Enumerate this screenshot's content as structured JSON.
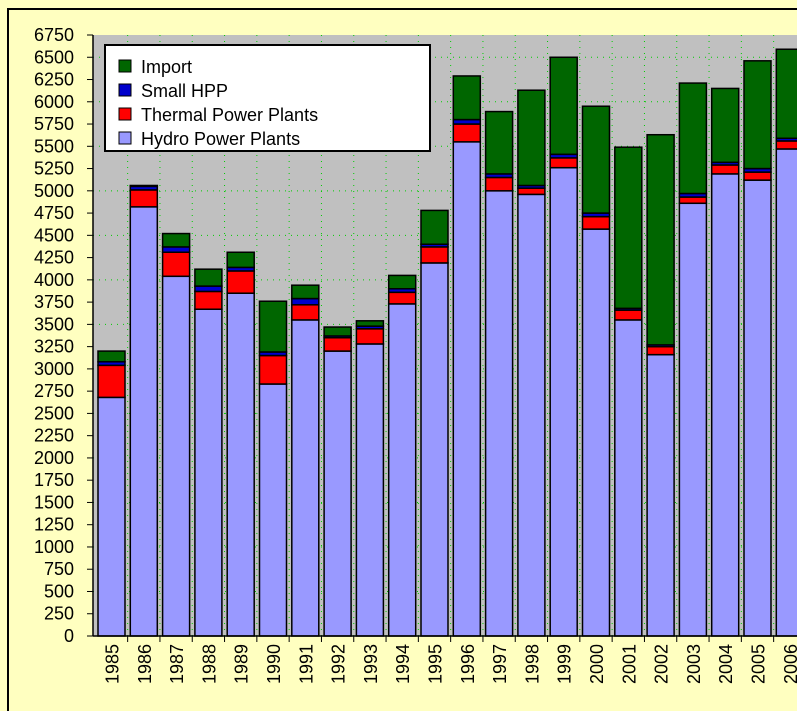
{
  "chart_data": {
    "type": "stacked_bar",
    "categories": [
      "1985",
      "1986",
      "1987",
      "1988",
      "1989",
      "1990",
      "1991",
      "1992",
      "1993",
      "1994",
      "1995",
      "1996",
      "1997",
      "1998",
      "1999",
      "2000",
      "2001",
      "2002",
      "2003",
      "2004",
      "2005",
      "2006"
    ],
    "series": [
      {
        "name": "Hydro Power Plants",
        "color": "#9999ff",
        "values": [
          2680,
          4820,
          4040,
          3670,
          3850,
          2830,
          3550,
          3200,
          3280,
          3730,
          4190,
          5550,
          5000,
          4960,
          5260,
          4570,
          3550,
          3160,
          4860,
          5190,
          5120,
          5470
        ]
      },
      {
        "name": "Thermal Power Plants",
        "color": "#ff0000",
        "values": [
          360,
          190,
          270,
          200,
          250,
          320,
          170,
          150,
          170,
          130,
          180,
          200,
          150,
          70,
          110,
          140,
          110,
          90,
          70,
          100,
          90,
          90
        ]
      },
      {
        "name": "Small HPP",
        "color": "#0000cc",
        "values": [
          40,
          40,
          60,
          60,
          40,
          40,
          70,
          20,
          30,
          40,
          30,
          50,
          40,
          30,
          40,
          40,
          20,
          20,
          40,
          30,
          40,
          30
        ]
      },
      {
        "name": "Import",
        "color": "#006600",
        "values": [
          120,
          10,
          150,
          190,
          170,
          570,
          150,
          100,
          60,
          150,
          380,
          490,
          700,
          1070,
          1090,
          1200,
          1810,
          2360,
          1240,
          830,
          1210,
          1000
        ]
      }
    ],
    "ylim": [
      0,
      6750
    ],
    "yticks": [
      0,
      250,
      500,
      750,
      1000,
      1250,
      1500,
      1750,
      2000,
      2250,
      2500,
      2750,
      3000,
      3250,
      3500,
      3750,
      4000,
      4250,
      4500,
      4750,
      5000,
      5250,
      5500,
      5750,
      6000,
      6250,
      6500,
      6750
    ],
    "grid": true
  }
}
